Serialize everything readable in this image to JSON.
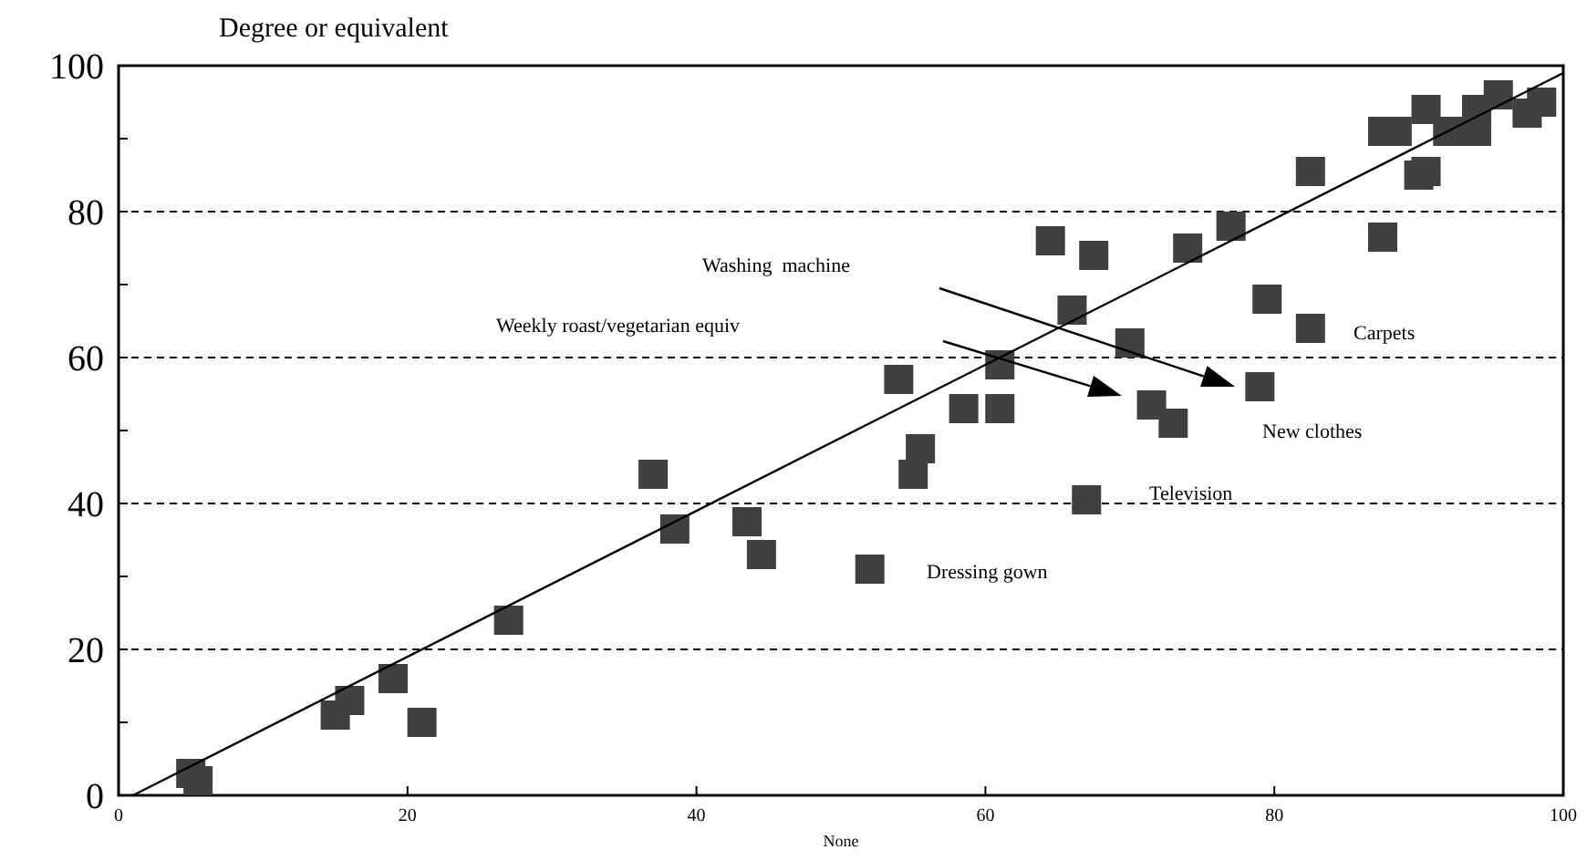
{
  "chart_data": {
    "type": "scatter",
    "ylabel": "Degree or equivalent",
    "xlabel": "None",
    "xlim": [
      0,
      100
    ],
    "ylim": [
      0,
      100
    ],
    "xticks": [
      0,
      20,
      40,
      60,
      80,
      100
    ],
    "yticks": [
      0,
      {
        "value": 10,
        "label": null
      },
      20,
      {
        "value": 30,
        "label": null
      },
      40,
      {
        "value": 50,
        "label": null
      },
      60,
      {
        "value": 70,
        "label": null
      },
      80,
      {
        "value": 90,
        "label": null
      },
      100
    ],
    "grid": "y",
    "series": [
      {
        "marker": "square",
        "color": "#404040",
        "x": [
          5,
          5.5,
          15,
          16,
          19,
          21,
          27,
          37,
          38.5,
          43.5,
          44.5,
          52,
          54,
          55,
          55.5,
          58.5,
          61,
          61,
          64.5,
          66,
          67.5,
          67,
          70,
          71.5,
          73,
          74,
          77,
          79,
          79.5,
          82.5,
          82.5,
          87.5,
          87.5,
          88.5,
          90,
          90.5,
          90.5,
          92,
          94,
          94,
          95.5,
          97.5,
          98.5
        ],
        "values": [
          3,
          2,
          11,
          13,
          16,
          10,
          24,
          44,
          36.5,
          37.5,
          33,
          31,
          57,
          44,
          47.5,
          53,
          53,
          59,
          76,
          66.5,
          74,
          40.5,
          62,
          53.5,
          51,
          75,
          78,
          56,
          68,
          64,
          85.5,
          76.5,
          91,
          91,
          85,
          85.5,
          94,
          91,
          91,
          94,
          96,
          93.5,
          95
        ]
      },
      {
        "type": "line",
        "color": "#000000",
        "x": [
          1,
          100
        ],
        "values": [
          0,
          99
        ]
      }
    ],
    "annotations": [
      "Washing  machine",
      "Weekly roast/vegetarian equiv",
      "Carpets",
      "New clothes",
      "Television",
      "Dressing gown"
    ]
  }
}
